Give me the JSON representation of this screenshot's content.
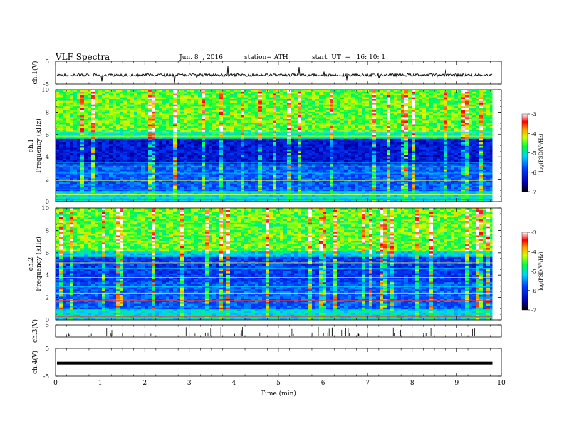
{
  "header": {
    "title": "VLF Spectra",
    "date": "Jun. 8  , 2016",
    "station": "station= ATH",
    "start": "start  UT  =   16: 10: 1"
  },
  "chart_data": [
    {
      "type": "line",
      "name": "ch1-waveform",
      "ylabel": "ch.1(V)",
      "ylim": [
        -5,
        5
      ],
      "yticks": [
        "5",
        "-5"
      ],
      "xlim": [
        0,
        10
      ],
      "level": -1.0
    },
    {
      "type": "heatmap",
      "name": "ch1-spectrogram",
      "ylabel_channel": "ch.1",
      "ylabel": "Frequency  (kHz)",
      "ylim": [
        0,
        10
      ],
      "yticks": [
        "0",
        "2",
        "4",
        "6",
        "8",
        "10"
      ],
      "xlim": [
        0,
        9.8
      ],
      "colorbar": {
        "label": "log(PSD(V²/Hz)",
        "range": [
          -7,
          -3
        ],
        "ticks": [
          "-7",
          "-6",
          "-5",
          "-4",
          "-3"
        ]
      }
    },
    {
      "type": "heatmap",
      "name": "ch2-spectrogram",
      "ylabel_channel": "ch.2",
      "ylabel": "Frequency  (kHz)",
      "ylim": [
        0,
        10
      ],
      "yticks": [
        "0",
        "2",
        "4",
        "6",
        "8",
        "10"
      ],
      "xlim": [
        0,
        9.8
      ],
      "colorbar": {
        "label": "log(PSD(V²/Hz)",
        "range": [
          -7,
          -3
        ],
        "ticks": [
          "-7",
          "-6",
          "-5",
          "-4",
          "-3"
        ]
      }
    },
    {
      "type": "line",
      "name": "ch3-waveform",
      "ylabel": "ch.3(V)",
      "ylim": [
        -5,
        5
      ],
      "yticks": [
        "5"
      ],
      "xlim": [
        0,
        10
      ]
    },
    {
      "type": "line",
      "name": "ch4-waveform",
      "ylabel": "ch.4(V)",
      "ylim": [
        -5,
        5
      ],
      "yticks": [
        "5",
        "-5"
      ],
      "xlim": [
        0,
        10
      ],
      "level": -0.3
    }
  ],
  "xaxis": {
    "label": "Time  (min)",
    "range": [
      0,
      10
    ],
    "ticks": [
      "0",
      "1",
      "2",
      "3",
      "4",
      "5",
      "6",
      "7",
      "8",
      "9",
      "10"
    ]
  }
}
